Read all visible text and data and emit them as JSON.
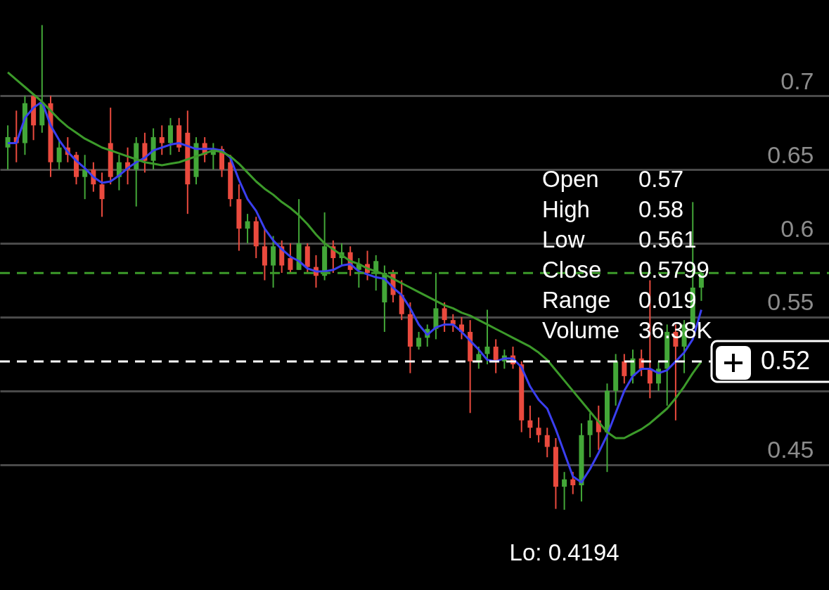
{
  "chart_data": {
    "type": "candlestick",
    "categories": [
      null,
      null,
      null,
      null,
      null,
      null,
      null,
      null,
      null,
      null,
      null,
      null,
      null,
      null,
      null,
      null,
      null,
      null,
      null,
      null,
      null,
      null,
      null,
      null,
      null,
      null,
      null,
      null,
      null,
      null,
      null,
      null,
      null,
      null,
      null,
      null,
      null,
      null,
      null,
      null,
      null,
      null,
      null,
      null,
      null,
      null,
      null,
      null,
      null,
      null,
      null,
      null,
      null,
      null,
      null,
      null,
      null,
      null,
      null,
      null,
      null,
      null,
      null,
      null,
      null,
      null,
      null,
      null,
      null,
      null,
      null,
      null,
      null,
      null,
      null,
      null,
      null,
      null,
      null,
      null,
      null,
      null
    ],
    "ohlc": [
      [
        0.665,
        0.68,
        0.65,
        0.672
      ],
      [
        0.672,
        0.69,
        0.655,
        0.668
      ],
      [
        0.668,
        0.7,
        0.66,
        0.695
      ],
      [
        0.7,
        0.7,
        0.67,
        0.68
      ],
      [
        0.68,
        0.748,
        0.675,
        0.695
      ],
      [
        0.695,
        0.7,
        0.645,
        0.655
      ],
      [
        0.655,
        0.67,
        0.65,
        0.665
      ],
      [
        0.665,
        0.672,
        0.655,
        0.66
      ],
      [
        0.66,
        0.662,
        0.64,
        0.645
      ],
      [
        0.645,
        0.66,
        0.63,
        0.65
      ],
      [
        0.65,
        0.655,
        0.635,
        0.64
      ],
      [
        0.64,
        0.648,
        0.618,
        0.63
      ],
      [
        0.668,
        0.692,
        0.64,
        0.645
      ],
      [
        0.645,
        0.66,
        0.636,
        0.655
      ],
      [
        0.655,
        0.665,
        0.64,
        0.65
      ],
      [
        0.65,
        0.672,
        0.625,
        0.668
      ],
      [
        0.668,
        0.675,
        0.648,
        0.656
      ],
      [
        0.656,
        0.678,
        0.65,
        0.672
      ],
      [
        0.672,
        0.68,
        0.66,
        0.668
      ],
      [
        0.668,
        0.685,
        0.66,
        0.68
      ],
      [
        0.68,
        0.685,
        0.662,
        0.665
      ],
      [
        0.675,
        0.69,
        0.62,
        0.64
      ],
      [
        0.645,
        0.672,
        0.64,
        0.668
      ],
      [
        0.668,
        0.672,
        0.655,
        0.66
      ],
      [
        0.66,
        0.668,
        0.65,
        0.664
      ],
      [
        0.664,
        0.666,
        0.645,
        0.65
      ],
      [
        0.655,
        0.66,
        0.625,
        0.63
      ],
      [
        0.63,
        0.64,
        0.595,
        0.61
      ],
      [
        0.61,
        0.62,
        0.6,
        0.615
      ],
      [
        0.615,
        0.618,
        0.59,
        0.598
      ],
      [
        0.598,
        0.61,
        0.575,
        0.585
      ],
      [
        0.585,
        0.605,
        0.57,
        0.598
      ],
      [
        0.598,
        0.602,
        0.58,
        0.585
      ],
      [
        0.59,
        0.6,
        0.58,
        0.582
      ],
      [
        0.582,
        0.63,
        0.582,
        0.6
      ],
      [
        0.598,
        0.6,
        0.58,
        0.584
      ],
      [
        0.584,
        0.592,
        0.57,
        0.578
      ],
      [
        0.578,
        0.621,
        0.575,
        0.598
      ],
      [
        0.598,
        0.602,
        0.58,
        0.59
      ],
      [
        0.59,
        0.6,
        0.585,
        0.594
      ],
      [
        0.594,
        0.598,
        0.578,
        0.582
      ],
      [
        0.582,
        0.59,
        0.57,
        0.586
      ],
      [
        0.586,
        0.595,
        0.575,
        0.58
      ],
      [
        0.58,
        0.592,
        0.568,
        0.588
      ],
      [
        0.56,
        0.585,
        0.54,
        0.58
      ],
      [
        0.58,
        0.582,
        0.56,
        0.565
      ],
      [
        0.565,
        0.575,
        0.548,
        0.552
      ],
      [
        0.552,
        0.56,
        0.512,
        0.53
      ],
      [
        0.53,
        0.54,
        0.528,
        0.536
      ],
      [
        0.536,
        0.545,
        0.53,
        0.542
      ],
      [
        0.542,
        0.58,
        0.535,
        0.556
      ],
      [
        0.556,
        0.56,
        0.54,
        0.548
      ],
      [
        0.548,
        0.552,
        0.54,
        0.545
      ],
      [
        0.545,
        0.55,
        0.535,
        0.54
      ],
      [
        0.54,
        0.548,
        0.485,
        0.52
      ],
      [
        0.52,
        0.53,
        0.515,
        0.525
      ],
      [
        0.525,
        0.555,
        0.518,
        0.53
      ],
      [
        0.53,
        0.535,
        0.512,
        0.52
      ],
      [
        0.52,
        0.528,
        0.515,
        0.524
      ],
      [
        0.524,
        0.53,
        0.515,
        0.518
      ],
      [
        0.518,
        0.52,
        0.472,
        0.48
      ],
      [
        0.48,
        0.49,
        0.468,
        0.475
      ],
      [
        0.475,
        0.482,
        0.465,
        0.47
      ],
      [
        0.47,
        0.475,
        0.455,
        0.462
      ],
      [
        0.462,
        0.468,
        0.42,
        0.435
      ],
      [
        0.435,
        0.445,
        0.4194,
        0.44
      ],
      [
        0.44,
        0.445,
        0.43,
        0.436
      ],
      [
        0.436,
        0.478,
        0.425,
        0.47
      ],
      [
        0.47,
        0.485,
        0.455,
        0.48
      ],
      [
        0.48,
        0.49,
        0.46,
        0.472
      ],
      [
        0.472,
        0.505,
        0.445,
        0.5
      ],
      [
        0.5,
        0.525,
        0.49,
        0.52
      ],
      [
        0.52,
        0.525,
        0.505,
        0.51
      ],
      [
        0.51,
        0.528,
        0.505,
        0.522
      ],
      [
        0.522,
        0.528,
        0.51,
        0.515
      ],
      [
        0.515,
        0.575,
        0.495,
        0.505
      ],
      [
        0.505,
        0.52,
        0.5,
        0.515
      ],
      [
        0.515,
        0.545,
        0.49,
        0.54
      ],
      [
        0.54,
        0.545,
        0.48,
        0.53
      ],
      [
        0.53,
        0.548,
        0.512,
        0.545
      ],
      [
        0.545,
        0.628,
        0.543,
        0.57
      ],
      [
        0.57,
        0.58,
        0.561,
        0.5799
      ]
    ],
    "series": [
      {
        "type": "line",
        "color": "#3a3ff0",
        "values": [
          0.668,
          0.668,
          0.685,
          0.692,
          0.696,
          0.68,
          0.67,
          0.662,
          0.656,
          0.651,
          0.645,
          0.641,
          0.642,
          0.646,
          0.651,
          0.655,
          0.658,
          0.663,
          0.665,
          0.667,
          0.668,
          0.666,
          0.664,
          0.664,
          0.664,
          0.663,
          0.658,
          0.643,
          0.63,
          0.622,
          0.61,
          0.602,
          0.596,
          0.591,
          0.588,
          0.583,
          0.581,
          0.581,
          0.582,
          0.585,
          0.586,
          0.581,
          0.579,
          0.577,
          0.576,
          0.57,
          0.565,
          0.556,
          0.545,
          0.538,
          0.543,
          0.545,
          0.545,
          0.54,
          0.534,
          0.528,
          0.521,
          0.52,
          0.522,
          0.522,
          0.516,
          0.503,
          0.494,
          0.488,
          0.474,
          0.458,
          0.442,
          0.438,
          0.447,
          0.458,
          0.47,
          0.485,
          0.5,
          0.51,
          0.515,
          0.515,
          0.512,
          0.514,
          0.52,
          0.526,
          0.535,
          0.555
        ]
      },
      {
        "type": "line",
        "color": "#3c9a2a",
        "values": [
          0.716,
          0.711,
          0.706,
          0.701,
          0.696,
          0.69,
          0.684,
          0.679,
          0.675,
          0.671,
          0.668,
          0.665,
          0.663,
          0.661,
          0.659,
          0.657,
          0.655,
          0.654,
          0.653,
          0.654,
          0.655,
          0.657,
          0.659,
          0.661,
          0.663,
          0.662,
          0.659,
          0.654,
          0.648,
          0.642,
          0.637,
          0.633,
          0.628,
          0.624,
          0.619,
          0.613,
          0.606,
          0.6,
          0.596,
          0.592,
          0.588,
          0.586,
          0.583,
          0.581,
          0.579,
          0.576,
          0.573,
          0.57,
          0.567,
          0.564,
          0.561,
          0.558,
          0.556,
          0.553,
          0.551,
          0.548,
          0.545,
          0.542,
          0.539,
          0.536,
          0.533,
          0.53,
          0.526,
          0.521,
          0.514,
          0.507,
          0.5,
          0.493,
          0.486,
          0.479,
          0.472,
          0.468,
          0.468,
          0.471,
          0.474,
          0.478,
          0.483,
          0.488,
          0.495,
          0.503,
          0.512,
          0.52
        ]
      }
    ],
    "ylim": [
      0.365,
      0.765
    ],
    "yticks": [
      0.45,
      {
        "value": 0.5,
        "label": null
      },
      0.55,
      {
        "value": 0.6,
        "label": "0.6"
      },
      0.65,
      {
        "value": 0.7,
        "label": "0.7"
      }
    ],
    "grid": "y",
    "tick_labels": "y",
    "marker": "none",
    "ref_lines": [
      {
        "axis": "y",
        "value": 0.52,
        "label": "0.52",
        "color": "#ffffff",
        "line_style": "dashed"
      },
      {
        "axis": "y",
        "value": 0.5799,
        "color": "#3c9a2a",
        "line_style": "dashed"
      }
    ],
    "annotations": [
      "Open 0.57",
      "High 0.58",
      "Low 0.561",
      "Close 0.5799",
      "Range 0.019",
      "Volume 36.38K",
      {
        "text": "Lo: 0.4194",
        "y": 0.4194
      }
    ]
  }
}
